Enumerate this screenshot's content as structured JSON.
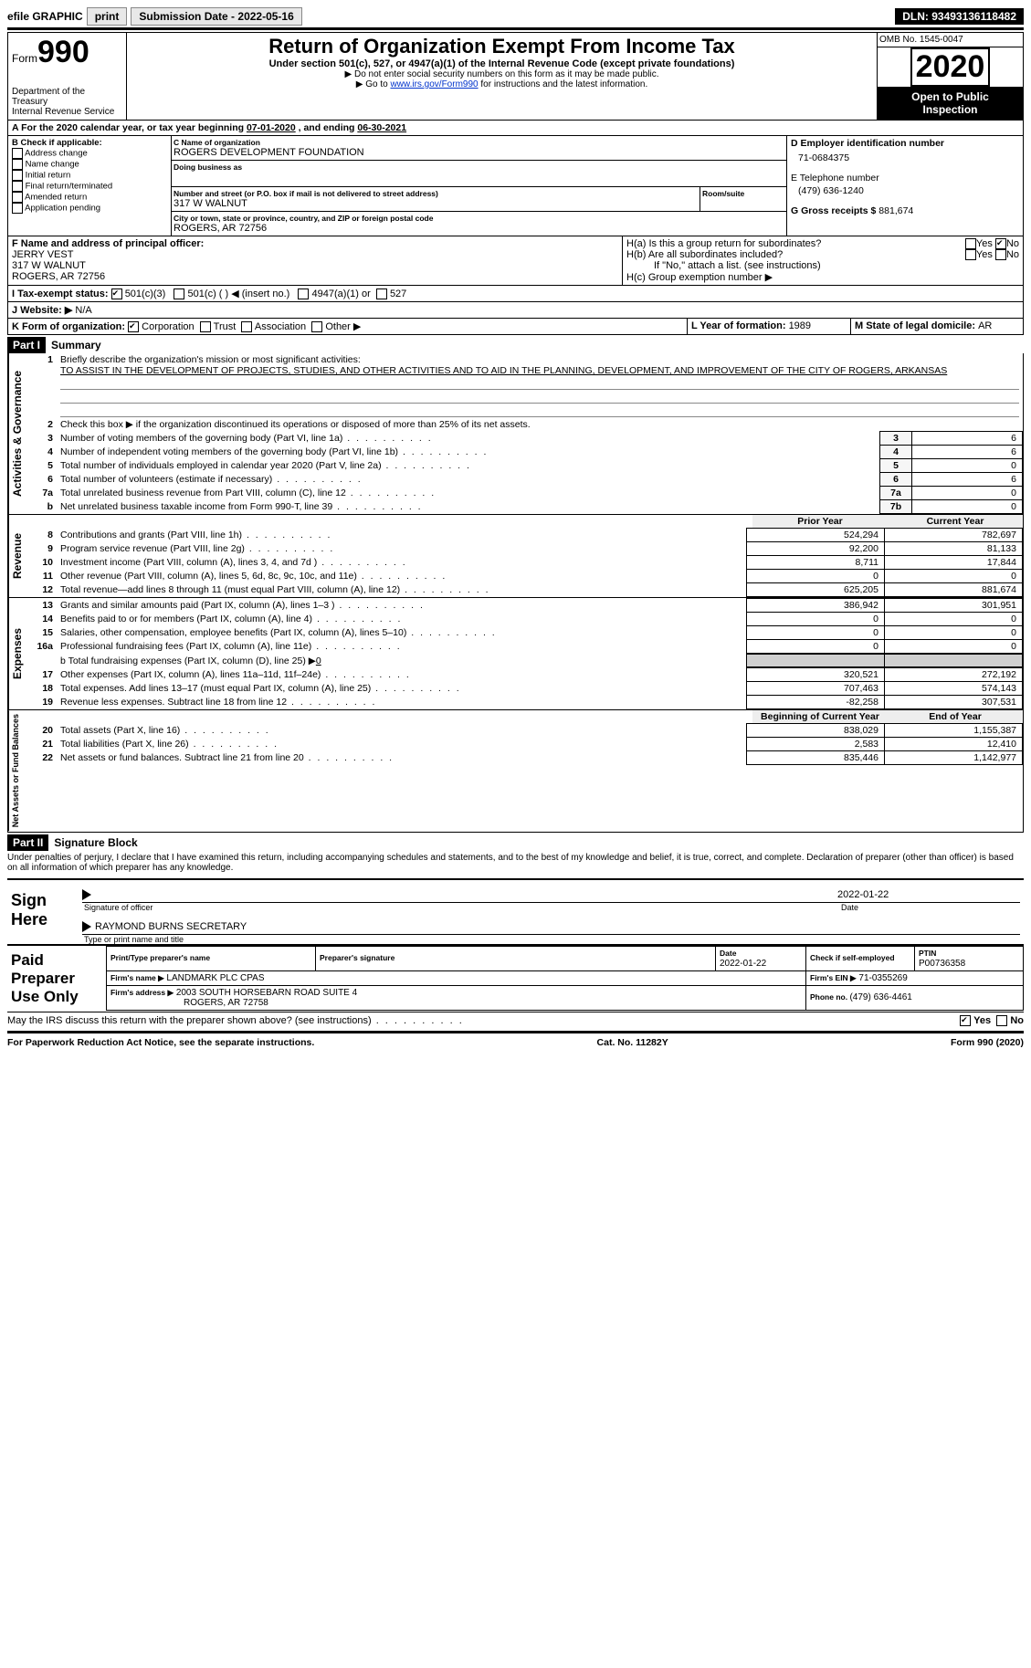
{
  "topbar": {
    "efile": "efile GRAPHIC",
    "print": "print",
    "sub_date_label": "Submission Date - ",
    "sub_date": "2022-05-16",
    "dln_label": "DLN: ",
    "dln": "93493136118482"
  },
  "header": {
    "form_label": "Form",
    "form_no": "990",
    "dept1": "Department of the Treasury",
    "dept2": "Internal Revenue Service",
    "title": "Return of Organization Exempt From Income Tax",
    "subtitle": "Under section 501(c), 527, or 4947(a)(1) of the Internal Revenue Code (except private foundations)",
    "note1": "▶ Do not enter social security numbers on this form as it may be made public.",
    "note2_pre": "▶ Go to ",
    "note2_link": "www.irs.gov/Form990",
    "note2_post": " for instructions and the latest information.",
    "omb": "OMB No. 1545-0047",
    "year": "2020",
    "open1": "Open to Public",
    "open2": "Inspection"
  },
  "period": {
    "line_a_pre": "A   For the 2020 calendar year, or tax year beginning ",
    "begin": "07-01-2020",
    "mid": " , and ending ",
    "end": "06-30-2021"
  },
  "colB": {
    "label": "B Check if applicable:",
    "opts": [
      "Address change",
      "Name change",
      "Initial return",
      "Final return/terminated",
      "Amended return",
      "Application pending"
    ]
  },
  "colC": {
    "name_label": "C Name of organization",
    "name": "ROGERS DEVELOPMENT FOUNDATION",
    "dba_label": "Doing business as",
    "street_label": "Number and street (or P.O. box if mail is not delivered to street address)",
    "room_label": "Room/suite",
    "street": "317 W WALNUT",
    "city_label": "City or town, state or province, country, and ZIP or foreign postal code",
    "city": "ROGERS, AR  72756"
  },
  "colD": {
    "ein_label": "D Employer identification number",
    "ein": "71-0684375",
    "tel_label": "E Telephone number",
    "tel": "(479) 636-1240",
    "gross_label": "G Gross receipts $ ",
    "gross": "881,674"
  },
  "rowF": {
    "label": "F  Name and address of principal officer:",
    "name": "JERRY VEST",
    "addr1": "317 W WALNUT",
    "addr2": "ROGERS, AR  72756"
  },
  "rowH": {
    "ha": "H(a)  Is this a group return for subordinates?",
    "hb": "H(b)  Are all subordinates included?",
    "hb_note": "If \"No,\" attach a list. (see instructions)",
    "hc": "H(c)  Group exemption number ▶",
    "yes": "Yes",
    "no": "No"
  },
  "rowI": {
    "label": "I   Tax-exempt status:",
    "o1": "501(c)(3)",
    "o2": "501(c) (  ) ◀ (insert no.)",
    "o3": "4947(a)(1) or",
    "o4": "527"
  },
  "rowJ": {
    "label": "J   Website: ▶",
    "val": "N/A"
  },
  "rowK": {
    "label": "K Form of organization:",
    "o1": "Corporation",
    "o2": "Trust",
    "o3": "Association",
    "o4": "Other ▶"
  },
  "rowLM": {
    "l": "L Year of formation: ",
    "l_val": "1989",
    "m": "M State of legal domicile: ",
    "m_val": "AR"
  },
  "part1": {
    "tag": "Part I",
    "title": "Summary",
    "l1_label": "Briefly describe the organization's mission or most significant activities:",
    "l1_text": "TO ASSIST IN THE DEVELOPMENT OF PROJECTS, STUDIES, AND OTHER ACTIVITIES AND TO AID IN THE PLANNING, DEVELOPMENT, AND IMPROVEMENT OF THE CITY OF ROGERS, ARKANSAS",
    "l2": "Check this box ▶      if the organization discontinued its operations or disposed of more than 25% of its net assets.",
    "rows_ag": [
      {
        "n": "3",
        "t": "Number of voting members of the governing body (Part VI, line 1a)",
        "b": "3",
        "v": "6"
      },
      {
        "n": "4",
        "t": "Number of independent voting members of the governing body (Part VI, line 1b)",
        "b": "4",
        "v": "6"
      },
      {
        "n": "5",
        "t": "Total number of individuals employed in calendar year 2020 (Part V, line 2a)",
        "b": "5",
        "v": "0"
      },
      {
        "n": "6",
        "t": "Total number of volunteers (estimate if necessary)",
        "b": "6",
        "v": "6"
      },
      {
        "n": "7a",
        "t": "Total unrelated business revenue from Part VIII, column (C), line 12",
        "b": "7a",
        "v": "0"
      },
      {
        "n": "b",
        "t": "Net unrelated business taxable income from Form 990-T, line 39",
        "b": "7b",
        "v": "0"
      }
    ],
    "col_prior": "Prior Year",
    "col_curr": "Current Year",
    "rev_rows": [
      {
        "n": "8",
        "t": "Contributions and grants (Part VIII, line 1h)",
        "p": "524,294",
        "c": "782,697"
      },
      {
        "n": "9",
        "t": "Program service revenue (Part VIII, line 2g)",
        "p": "92,200",
        "c": "81,133"
      },
      {
        "n": "10",
        "t": "Investment income (Part VIII, column (A), lines 3, 4, and 7d )",
        "p": "8,711",
        "c": "17,844"
      },
      {
        "n": "11",
        "t": "Other revenue (Part VIII, column (A), lines 5, 6d, 8c, 9c, 10c, and 11e)",
        "p": "0",
        "c": "0"
      },
      {
        "n": "12",
        "t": "Total revenue—add lines 8 through 11 (must equal Part VIII, column (A), line 12)",
        "p": "625,205",
        "c": "881,674"
      }
    ],
    "exp_rows": [
      {
        "n": "13",
        "t": "Grants and similar amounts paid (Part IX, column (A), lines 1–3 )",
        "p": "386,942",
        "c": "301,951"
      },
      {
        "n": "14",
        "t": "Benefits paid to or for members (Part IX, column (A), line 4)",
        "p": "0",
        "c": "0"
      },
      {
        "n": "15",
        "t": "Salaries, other compensation, employee benefits (Part IX, column (A), lines 5–10)",
        "p": "0",
        "c": "0"
      },
      {
        "n": "16a",
        "t": "Professional fundraising fees (Part IX, column (A), line 11e)",
        "p": "0",
        "c": "0"
      }
    ],
    "l16b_pre": "b  Total fundraising expenses (Part IX, column (D), line 25) ▶",
    "l16b_val": "0",
    "exp_rows2": [
      {
        "n": "17",
        "t": "Other expenses (Part IX, column (A), lines 11a–11d, 11f–24e)",
        "p": "320,521",
        "c": "272,192"
      },
      {
        "n": "18",
        "t": "Total expenses. Add lines 13–17 (must equal Part IX, column (A), line 25)",
        "p": "707,463",
        "c": "574,143"
      },
      {
        "n": "19",
        "t": "Revenue less expenses. Subtract line 18 from line 12",
        "p": "-82,258",
        "c": "307,531"
      }
    ],
    "col_begin": "Beginning of Current Year",
    "col_end": "End of Year",
    "na_rows": [
      {
        "n": "20",
        "t": "Total assets (Part X, line 16)",
        "p": "838,029",
        "c": "1,155,387"
      },
      {
        "n": "21",
        "t": "Total liabilities (Part X, line 26)",
        "p": "2,583",
        "c": "12,410"
      },
      {
        "n": "22",
        "t": "Net assets or fund balances. Subtract line 21 from line 20",
        "p": "835,446",
        "c": "1,142,977"
      }
    ],
    "vlab_ag": "Activities & Governance",
    "vlab_rev": "Revenue",
    "vlab_exp": "Expenses",
    "vlab_na": "Net Assets or Fund Balances"
  },
  "part2": {
    "tag": "Part II",
    "title": "Signature Block",
    "decl": "Under penalties of perjury, I declare that I have examined this return, including accompanying schedules and statements, and to the best of my knowledge and belief, it is true, correct, and complete. Declaration of preparer (other than officer) is based on all information of which preparer has any knowledge.",
    "sign_here": "Sign Here",
    "sig_officer": "Signature of officer",
    "sig_date": "Date",
    "officer_date": "2022-01-22",
    "officer_name": "RAYMOND BURNS  SECRETARY",
    "type_name": "Type or print name and title",
    "paid": "Paid Preparer Use Only",
    "p_name_label": "Print/Type preparer's name",
    "p_sig_label": "Preparer's signature",
    "p_date_label": "Date",
    "p_date": "2022-01-22",
    "p_check_label": "Check       if self-employed",
    "p_ptin_label": "PTIN",
    "p_ptin": "P00736358",
    "firm_name_label": "Firm's name   ▶",
    "firm_name": "LANDMARK PLC CPAS",
    "firm_ein_label": "Firm's EIN ▶",
    "firm_ein": "71-0355269",
    "firm_addr_label": "Firm's address ▶",
    "firm_addr1": "2003 SOUTH HORSEBARN ROAD SUITE 4",
    "firm_addr2": "ROGERS, AR  72758",
    "firm_phone_label": "Phone no. ",
    "firm_phone": "(479) 636-4461",
    "discuss": "May the IRS discuss this return with the preparer shown above? (see instructions)",
    "yes": "Yes",
    "no": "No"
  },
  "footer": {
    "left": "For Paperwork Reduction Act Notice, see the separate instructions.",
    "mid": "Cat. No. 11282Y",
    "right": "Form 990 (2020)"
  }
}
